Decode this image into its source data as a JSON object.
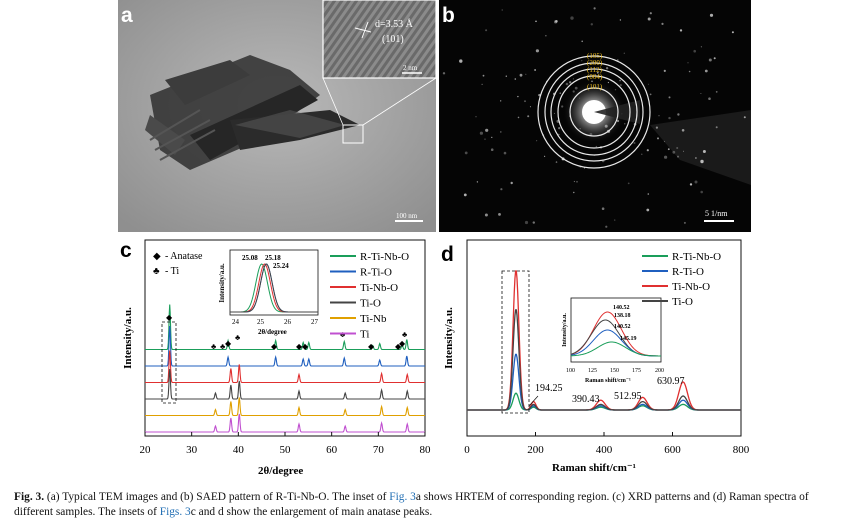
{
  "panel_a": {
    "letter": "a",
    "inset_d": "d=3.53 Å",
    "inset_plane": "(101)",
    "inset_scale": "2 nm",
    "scale": "100 nm"
  },
  "panel_b": {
    "letter": "b",
    "rings": [
      "(105)",
      "(200)",
      "(112)",
      "(004)",
      "(101)"
    ],
    "scale": "5 1/nm"
  },
  "panel_c": {
    "letter": "c",
    "marker_legend": [
      {
        "symbol": "◆",
        "label": "- Anatase"
      },
      {
        "symbol": "♣",
        "label": "- Ti"
      }
    ],
    "inset": {
      "ylabel": "Intensity/a.u.",
      "xlabel": "2θ/degree",
      "ticks": [
        "24",
        "25",
        "26",
        "27"
      ],
      "peak_labels": [
        "25.08",
        "25.18",
        "25.24"
      ]
    }
  },
  "panel_d": {
    "letter": "d",
    "inset": {
      "ylabel": "Intensity/a.u.",
      "xlabel": "Raman shift/cm⁻¹",
      "ticks": [
        "100",
        "125",
        "150",
        "175",
        "200"
      ],
      "peak_labels": [
        "140.52",
        "138.18",
        "140.52",
        "145.19"
      ]
    }
  },
  "chart_data": [
    {
      "type": "line",
      "xlabel": "2θ/degree",
      "ylabel": "Intensity/a.u.",
      "xlim": [
        20,
        80
      ],
      "x_ticks": [
        "20",
        "30",
        "40",
        "50",
        "60",
        "70",
        "80"
      ],
      "legend_position": "top-right",
      "series": [
        {
          "name": "R-Ti-Nb-O",
          "color": "#1a9e5a",
          "offset": 5,
          "peaks": [
            25.3,
            37.8,
            48.0,
            53.9,
            55.1,
            62.7,
            68.8,
            70.3,
            75.1,
            76.1
          ]
        },
        {
          "name": "R-Ti-O",
          "color": "#1f5fbf",
          "offset": 4,
          "peaks": [
            25.3,
            37.8,
            48.0,
            53.9,
            55.1,
            62.7,
            70.3,
            76.1
          ]
        },
        {
          "name": "Ti-Nb-O",
          "color": "#e03030",
          "offset": 3,
          "peaks": [
            25.3,
            38.4,
            40.2,
            53.0,
            70.7,
            76.2
          ]
        },
        {
          "name": "Ti-O",
          "color": "#444444",
          "offset": 2,
          "peaks": [
            25.3,
            35.1,
            38.4,
            40.2,
            53.0,
            62.9,
            70.7,
            76.2
          ]
        },
        {
          "name": "Ti-Nb",
          "color": "#e0a000",
          "offset": 1,
          "peaks": [
            35.1,
            38.4,
            40.2,
            53.0,
            62.9,
            70.7,
            76.2
          ]
        },
        {
          "name": "Ti",
          "color": "#c050d0",
          "offset": 0,
          "peaks": [
            35.1,
            38.4,
            40.2,
            53.0,
            62.9,
            70.7,
            76.2
          ]
        }
      ]
    },
    {
      "type": "line",
      "xlabel": "Raman shift/cm⁻¹",
      "ylabel": "Intensity/a.u.",
      "xlim": [
        0,
        800
      ],
      "x_ticks": [
        "0",
        "200",
        "400",
        "600",
        "800"
      ],
      "legend_position": "top-right",
      "annotations": [
        "194.25",
        "390.43",
        "512.95",
        "630.97"
      ],
      "series": [
        {
          "name": "R-Ti-Nb-O",
          "color": "#1a9e5a",
          "peak_heights": [
            0.12,
            0.02,
            0.02,
            0.03,
            0.04
          ]
        },
        {
          "name": "R-Ti-O",
          "color": "#1f5fbf",
          "peak_heights": [
            0.4,
            0.03,
            0.03,
            0.04,
            0.07
          ]
        },
        {
          "name": "Ti-Nb-O",
          "color": "#e03030",
          "peak_heights": [
            1.0,
            0.06,
            0.07,
            0.09,
            0.2
          ]
        },
        {
          "name": "Ti-O",
          "color": "#444444",
          "peak_heights": [
            0.72,
            0.04,
            0.04,
            0.06,
            0.1
          ]
        }
      ],
      "peak_positions": [
        143,
        194.25,
        390.43,
        512.95,
        630.97
      ]
    }
  ],
  "caption": {
    "label": "Fig. 3.",
    "part1": " (a) Typical TEM images and (b) SAED pattern of R-Ti-Nb-O. The inset of ",
    "ref1": "Fig. 3",
    "part2": "a shows HRTEM of corresponding region. (c) XRD patterns and (d) Raman spectra of different samples. The insets of ",
    "ref2": "Figs. 3",
    "part3": "c and d show the enlargement of main anatase peaks."
  }
}
